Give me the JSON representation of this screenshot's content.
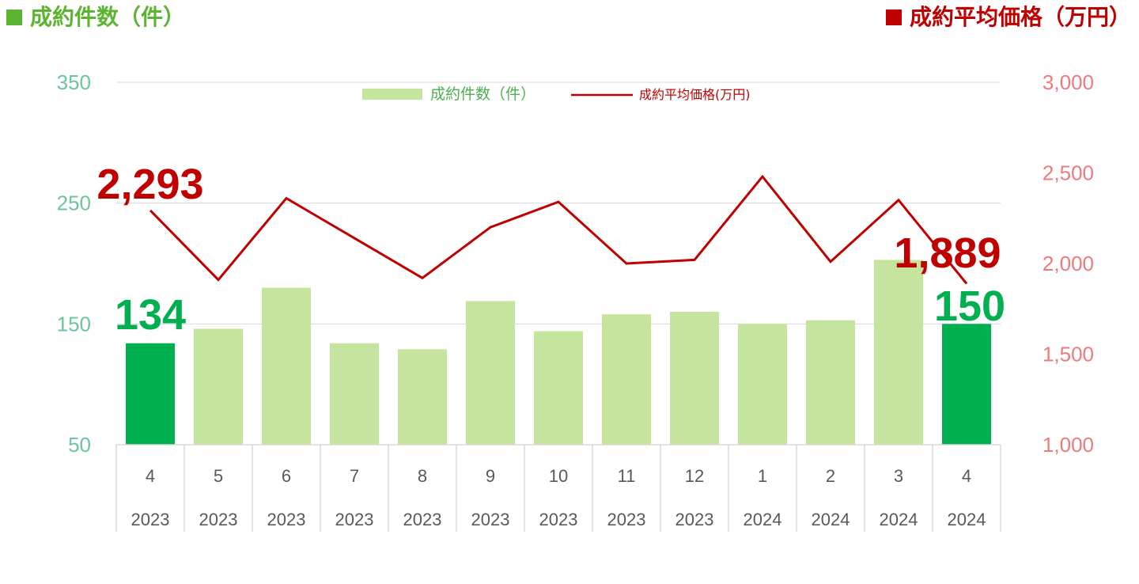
{
  "header": {
    "left_title": "成約件数（件）",
    "right_title": "成約平均価格（万円）"
  },
  "colors": {
    "bar_light": "#c5e59e",
    "bar_highlight": "#00b050",
    "line": "#c00000",
    "left_axis": "#6cc59b",
    "right_axis": "#ee7b7b",
    "header_green": "#5cb531",
    "header_red": "#c00000"
  },
  "chart_data": {
    "type": "bar",
    "categories": [
      {
        "month": "4",
        "year": "2023"
      },
      {
        "month": "5",
        "year": "2023"
      },
      {
        "month": "6",
        "year": "2023"
      },
      {
        "month": "7",
        "year": "2023"
      },
      {
        "month": "8",
        "year": "2023"
      },
      {
        "month": "9",
        "year": "2023"
      },
      {
        "month": "10",
        "year": "2023"
      },
      {
        "month": "11",
        "year": "2023"
      },
      {
        "month": "12",
        "year": "2023"
      },
      {
        "month": "1",
        "year": "2024"
      },
      {
        "month": "2",
        "year": "2024"
      },
      {
        "month": "3",
        "year": "2024"
      },
      {
        "month": "4",
        "year": "2024"
      }
    ],
    "series": [
      {
        "name": "成約件数（件）",
        "type": "bar",
        "axis": "left",
        "values": [
          134,
          146,
          180,
          134,
          129,
          169,
          144,
          158,
          160,
          150,
          153,
          203,
          150
        ],
        "highlight": [
          true,
          false,
          false,
          false,
          false,
          false,
          false,
          false,
          false,
          false,
          false,
          false,
          true
        ]
      },
      {
        "name": "成約平均価格(万円)",
        "type": "line",
        "axis": "right",
        "values": [
          2293,
          1910,
          2360,
          2140,
          1920,
          2200,
          2340,
          2000,
          2020,
          2480,
          2010,
          2350,
          1889
        ]
      }
    ],
    "left_axis": {
      "ylim": [
        50,
        350
      ],
      "ticks": [
        "50",
        "150",
        "250",
        "350"
      ]
    },
    "right_axis": {
      "ylim": [
        1000,
        3000
      ],
      "ticks": [
        "1,000",
        "1,500",
        "2,000",
        "2,500",
        "3,000"
      ]
    },
    "data_labels": {
      "bar_first": "134",
      "bar_last": "150",
      "line_first": "2,293",
      "line_last": "1,889"
    },
    "legend": {
      "placement": "top-center"
    },
    "grid": true
  }
}
